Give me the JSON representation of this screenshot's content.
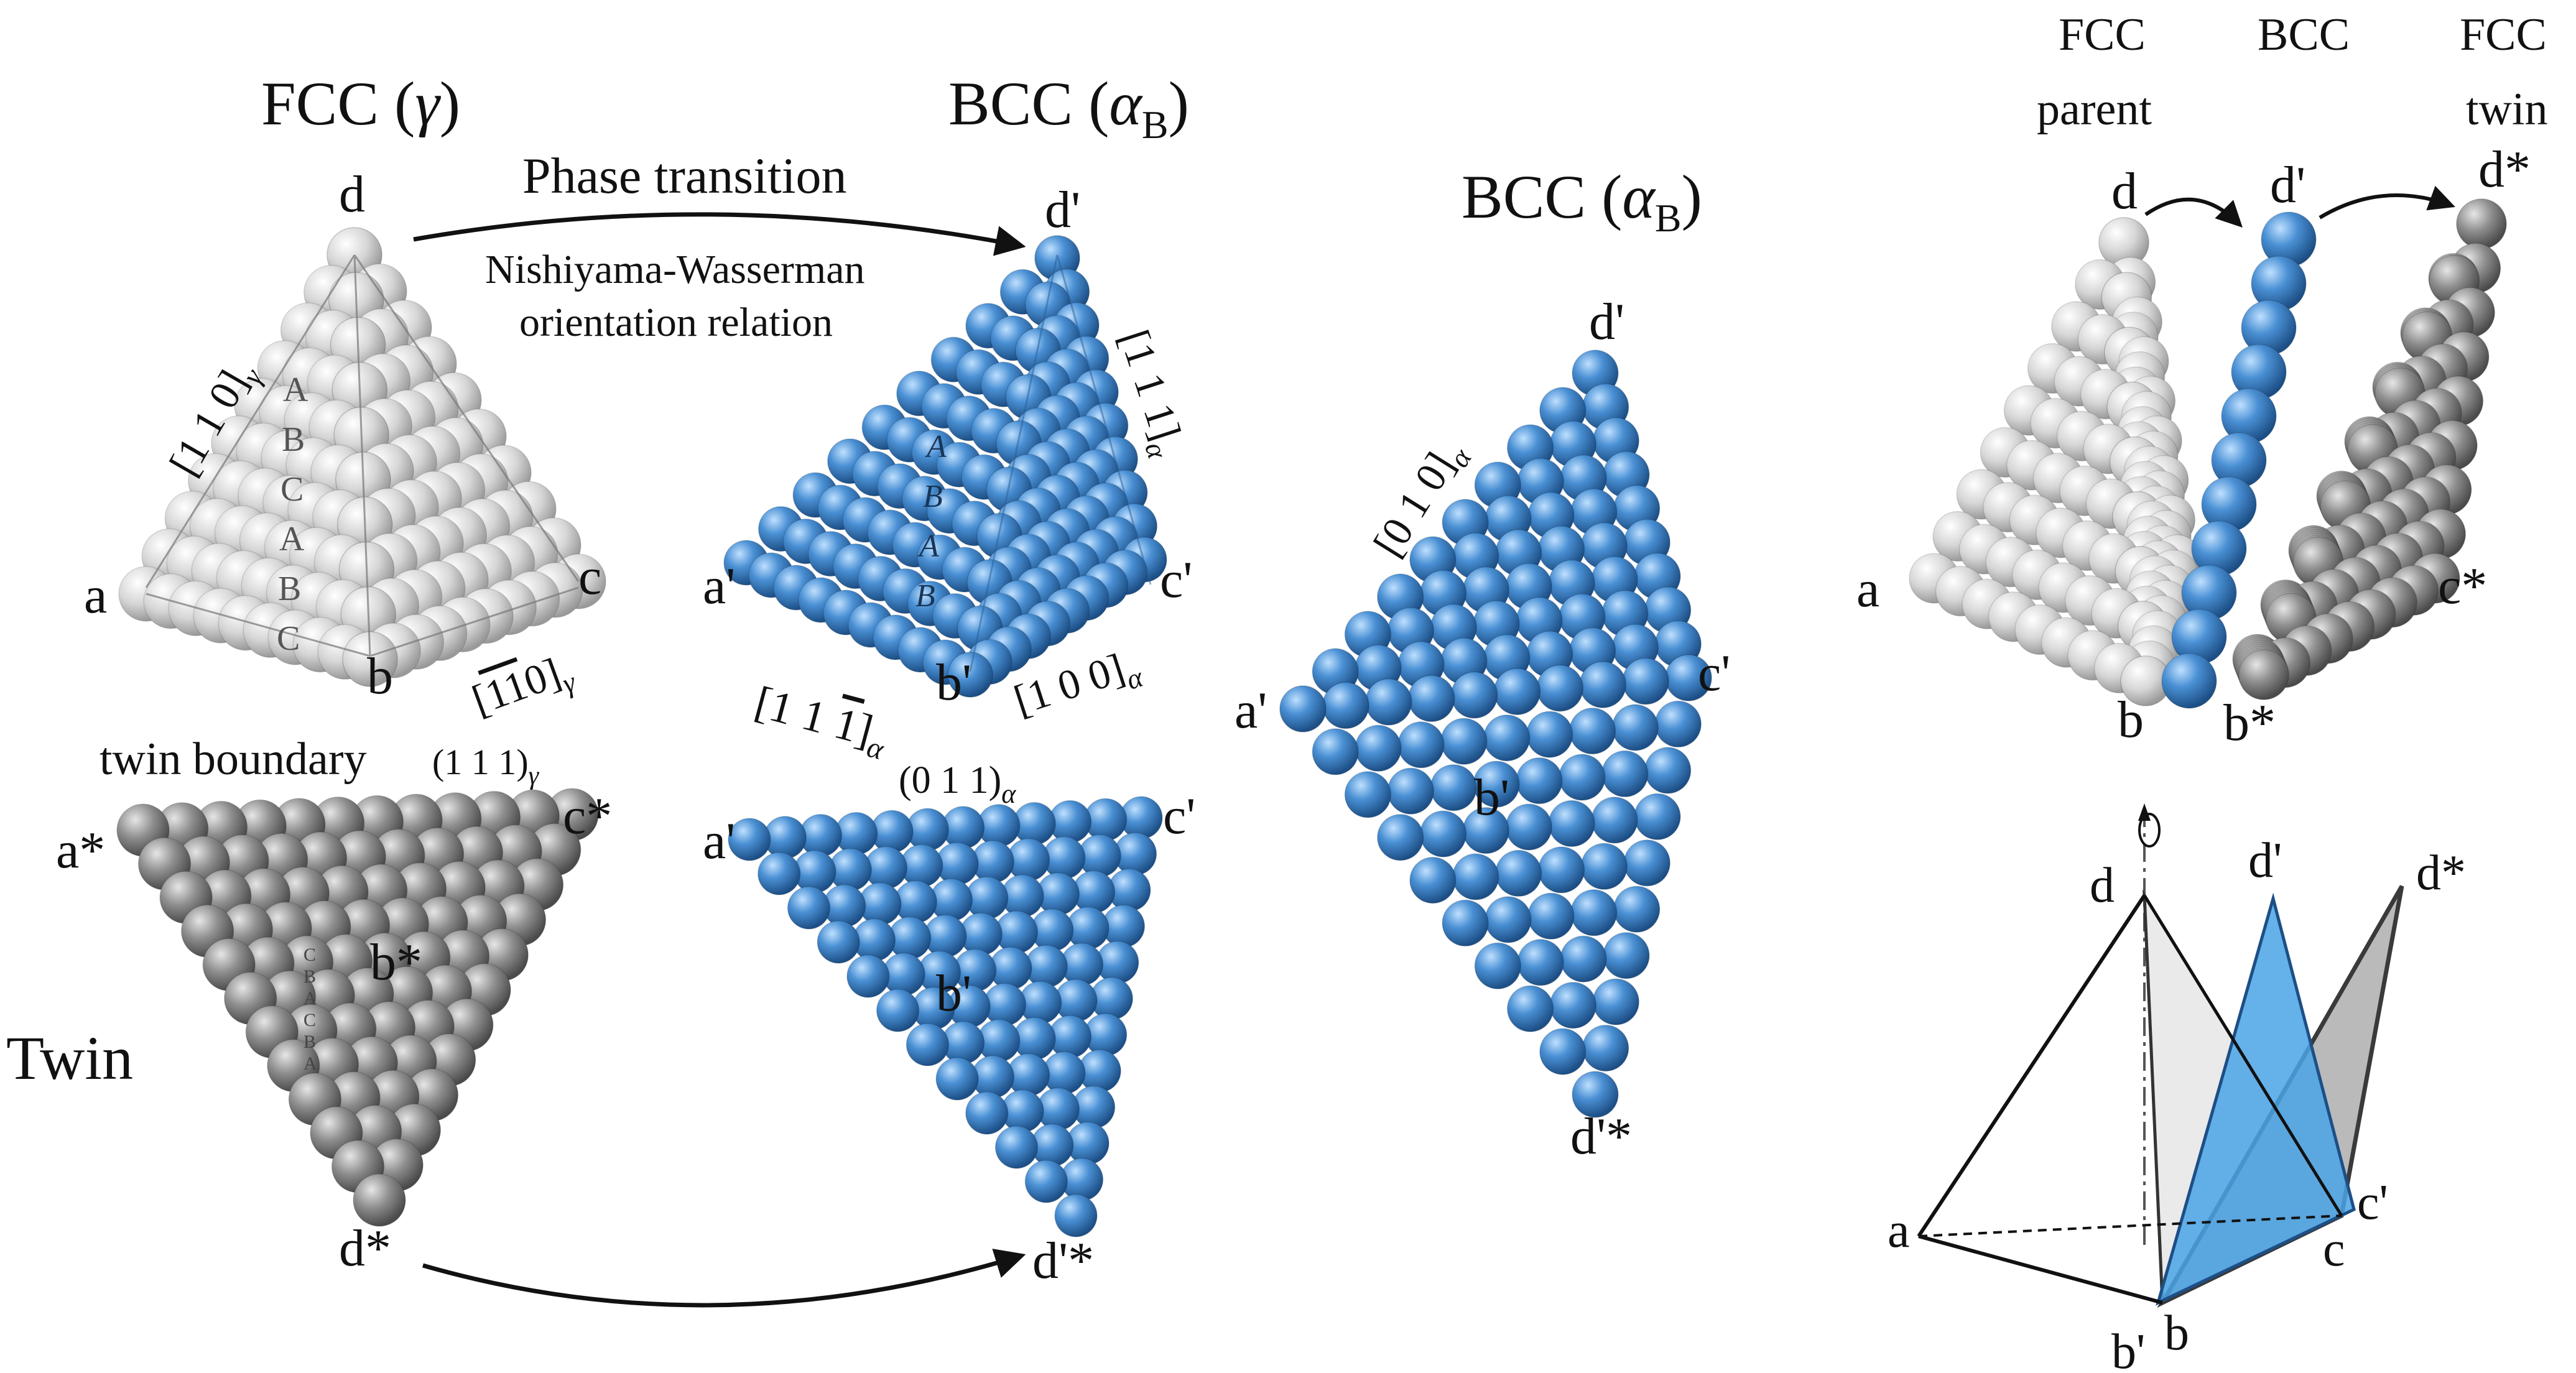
{
  "titles": {
    "fcc": "FCC (γ)",
    "bcc_top": "BCC (αB)",
    "bcc_mid": "BCC (αB)",
    "twin_side": "Twin",
    "phase_transition": "Phase transition",
    "nw_line1": "Nishiyama-Wasserman",
    "nw_line2": "orientation relation",
    "twin_boundary": "twin boundary",
    "twin_boundary_plane": "(1 1 1)γ"
  },
  "directions": {
    "fcc_110": "[1 1 0]γ",
    "fcc_m1m10": "[1̄1̄0]γ",
    "bcc_111": "[1 1 1]α",
    "bcc_11m1": "[1 1 1̄]α",
    "bcc_100": "[1 0 0]α",
    "bcc_011": "(0 1 1)α",
    "bcc_010": "[0 1 0]α"
  },
  "stacking": {
    "fcc": [
      "A",
      "B",
      "C",
      "A",
      "B",
      "C"
    ],
    "bcc": [
      "A",
      "B",
      "A",
      "B"
    ],
    "twin": [
      "C",
      "B",
      "A",
      "C",
      "B",
      "A"
    ]
  },
  "vertices": {
    "fcc": {
      "a": "a",
      "b": "b",
      "c": "c",
      "d": "d"
    },
    "bcc": {
      "a": "a'",
      "b": "b'",
      "c": "c'",
      "d": "d'"
    },
    "twin": {
      "a": "a*",
      "b": "b*",
      "c": "c*",
      "d": "d*"
    },
    "bcc_twin_d": "d'*"
  },
  "right_panel": {
    "header_fcc_parent": [
      "FCC",
      "parent"
    ],
    "header_bcc": [
      "BCC"
    ],
    "header_fcc_twin": [
      "FCC",
      "twin"
    ],
    "labels": [
      "d",
      "d'",
      "d*",
      "a",
      "b",
      "b*",
      "c*"
    ]
  },
  "schematic": {
    "labels": [
      "d",
      "d'",
      "d*",
      "a",
      "b'",
      "b",
      "c",
      "c'"
    ]
  },
  "colors": {
    "fcc": "#d3d3d3",
    "bcc": "#4a8fd0",
    "twin": "#8f8f8f",
    "bcc_plane": "#4aa3e6",
    "twin_plane": "#a6a6a6",
    "fcc_plane": "#d8d8d8"
  }
}
